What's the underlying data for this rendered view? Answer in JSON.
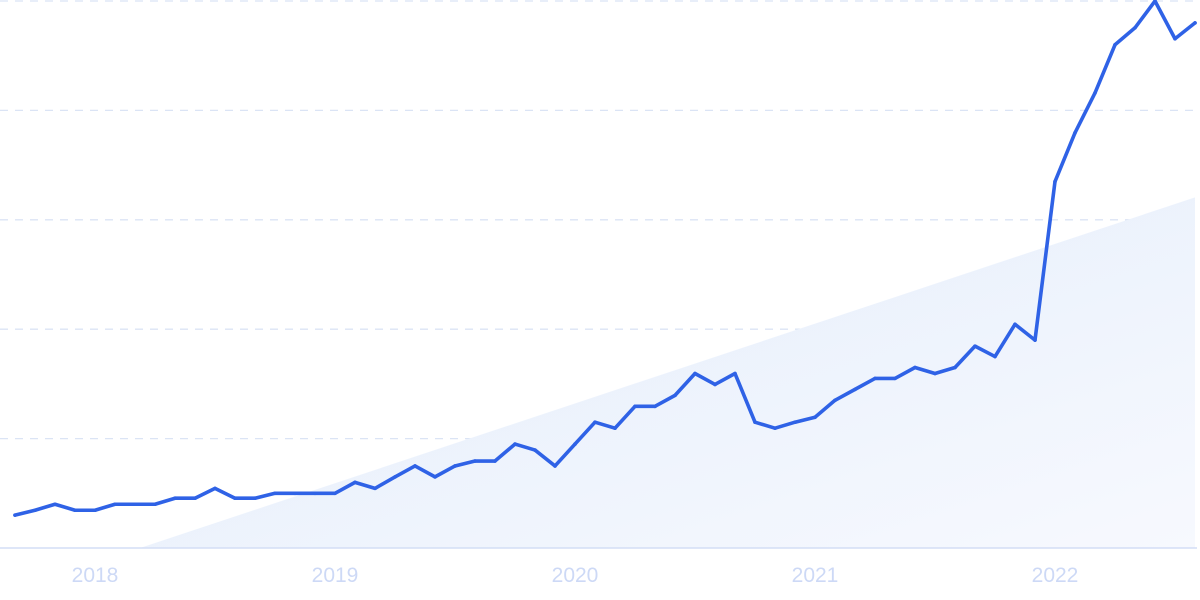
{
  "chart_data": {
    "type": "line",
    "title": "",
    "xlabel": "",
    "ylabel": "",
    "x_tick_labels": [
      "2018",
      "2019",
      "2020",
      "2021",
      "2022"
    ],
    "ylim": [
      0,
      100
    ],
    "y_gridlines": [
      0,
      20,
      40,
      60,
      80,
      100
    ],
    "grid": "horizontal dashed",
    "legend": "none",
    "x": [
      "2017-09",
      "2017-10",
      "2017-11",
      "2017-12",
      "2018-01",
      "2018-02",
      "2018-03",
      "2018-04",
      "2018-05",
      "2018-06",
      "2018-07",
      "2018-08",
      "2018-09",
      "2018-10",
      "2018-11",
      "2018-12",
      "2019-01",
      "2019-02",
      "2019-03",
      "2019-04",
      "2019-05",
      "2019-06",
      "2019-07",
      "2019-08",
      "2019-09",
      "2019-10",
      "2019-11",
      "2019-12",
      "2020-01",
      "2020-02",
      "2020-03",
      "2020-04",
      "2020-05",
      "2020-06",
      "2020-07",
      "2020-08",
      "2020-09",
      "2020-10",
      "2020-11",
      "2020-12",
      "2021-01",
      "2021-02",
      "2021-03",
      "2021-04",
      "2021-05",
      "2021-06",
      "2021-07",
      "2021-08",
      "2021-09",
      "2021-10",
      "2021-11",
      "2021-12",
      "2022-01",
      "2022-02",
      "2022-03",
      "2022-04",
      "2022-05",
      "2022-06",
      "2022-07",
      "2022-08"
    ],
    "series": [
      {
        "values": [
          6.0,
          6.9,
          8.0,
          6.9,
          6.9,
          8.0,
          8.0,
          8.0,
          9.1,
          9.1,
          10.9,
          9.1,
          9.1,
          10.0,
          10.0,
          10.0,
          10.0,
          12.0,
          10.9,
          13.0,
          15.0,
          13.0,
          15.0,
          15.9,
          15.9,
          19.0,
          17.9,
          15.0,
          19.0,
          23.0,
          21.9,
          25.9,
          25.9,
          27.9,
          31.9,
          29.9,
          31.9,
          23.0,
          21.9,
          23.0,
          23.9,
          27.0,
          29.0,
          31.0,
          31.0,
          33.0,
          31.9,
          33.0,
          36.9,
          35.0,
          40.9,
          38.0,
          67.0,
          75.9,
          83.2,
          92.0,
          95.1,
          100,
          93.1,
          96.0
        ]
      }
    ],
    "trend": {
      "start": {
        "x": "2018-03",
        "y": 0
      },
      "end": {
        "x": "2022-08",
        "y": 64.1
      }
    },
    "colors": {
      "line": "#2f62e6",
      "trend_fill": "#e4eefb",
      "grid": "#dbe4f5",
      "axis": "#d3def5",
      "tick_label": "#cdd9f6"
    }
  }
}
